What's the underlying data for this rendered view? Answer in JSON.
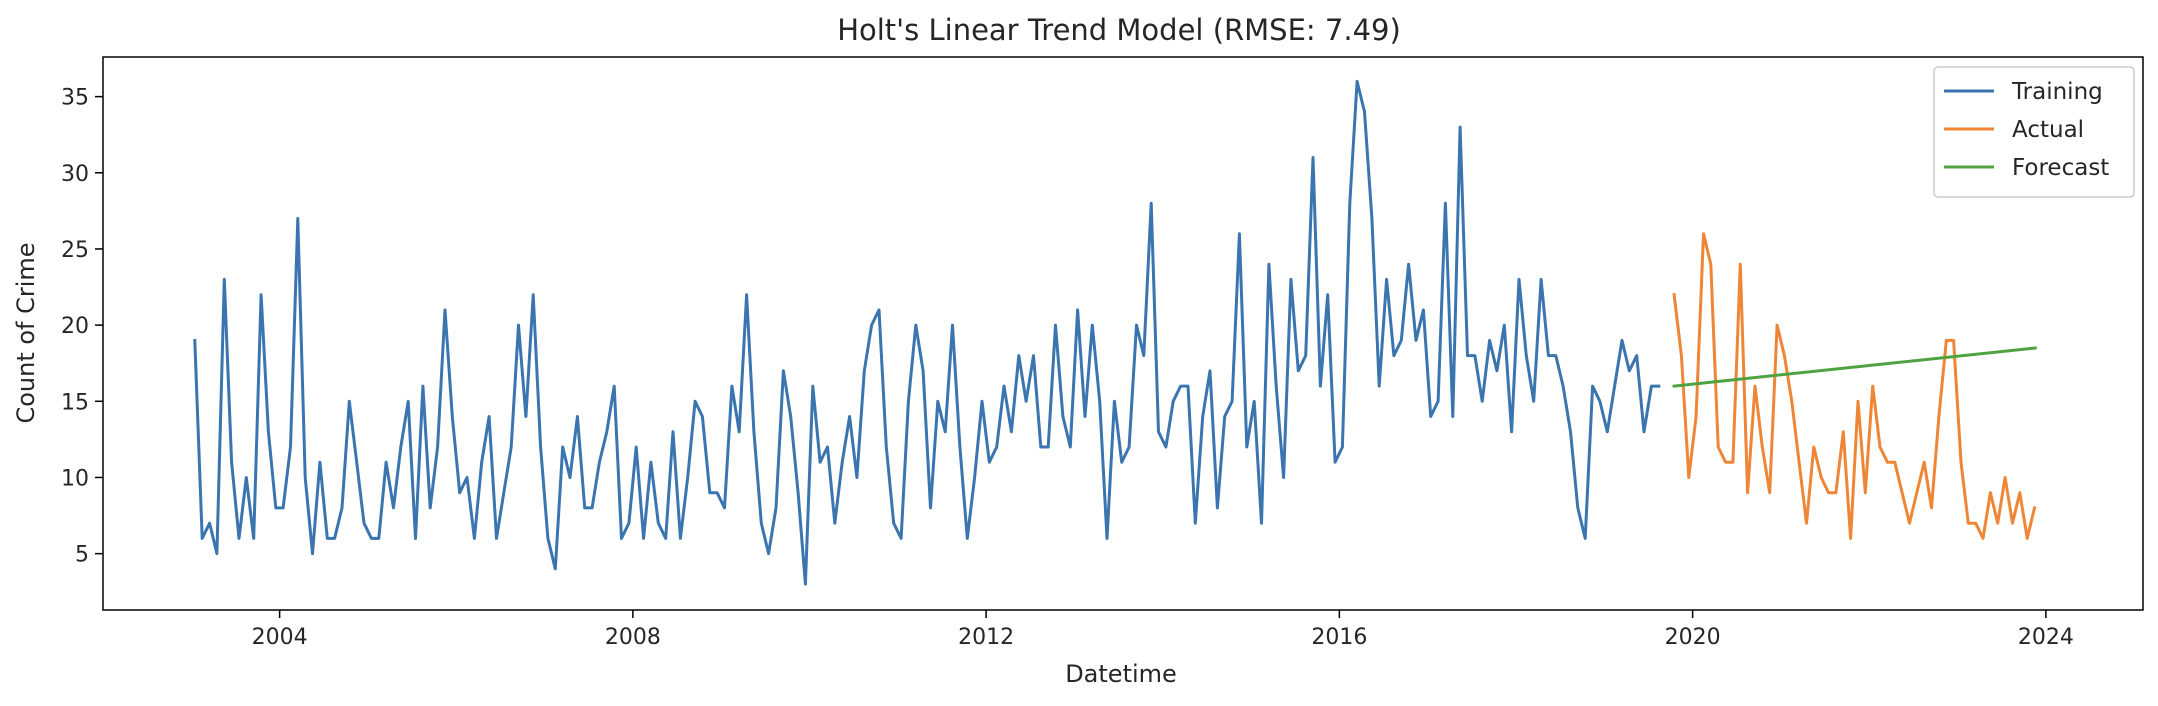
{
  "chart_data": {
    "type": "line",
    "title": "Holt's Linear Trend Model (RMSE: 7.49)",
    "xlabel": "Datetime",
    "ylabel": "Count of Crime",
    "xlim": [
      2002.0,
      2025.1
    ],
    "ylim": [
      1.3,
      37.6
    ],
    "xticks": [
      2004,
      2008,
      2012,
      2016,
      2020,
      2024
    ],
    "yticks": [
      5,
      10,
      15,
      20,
      25,
      30,
      35
    ],
    "grid": false,
    "legend": "top-right",
    "series": [
      {
        "name": "Training",
        "color": "#3a75b0",
        "start_year": 2003.04,
        "step_years": 0.0833,
        "values": [
          19,
          6,
          7,
          5,
          23,
          11,
          6,
          10,
          6,
          22,
          13,
          8,
          8,
          12,
          27,
          10,
          5,
          11,
          6,
          6,
          8,
          15,
          11,
          7,
          6,
          6,
          11,
          8,
          12,
          15,
          6,
          16,
          8,
          12,
          21,
          14,
          9,
          10,
          6,
          11,
          14,
          6,
          9,
          12,
          20,
          14,
          22,
          12,
          6,
          4,
          12,
          10,
          14,
          8,
          8,
          11,
          13,
          16,
          6,
          7,
          12,
          6,
          11,
          7,
          6,
          13,
          6,
          10,
          15,
          14,
          9,
          9,
          8,
          16,
          13,
          22,
          13,
          7,
          5,
          8,
          17,
          14,
          9,
          3,
          16,
          11,
          12,
          7,
          11,
          14,
          10,
          17,
          20,
          21,
          12,
          7,
          6,
          15,
          20,
          17,
          8,
          15,
          13,
          20,
          12,
          6,
          10,
          15,
          11,
          12,
          16,
          13,
          18,
          15,
          18,
          12,
          12,
          20,
          14,
          12,
          21,
          14,
          20,
          15,
          6,
          15,
          11,
          12,
          20,
          18,
          28,
          13,
          12,
          15,
          16,
          16,
          7,
          14,
          17,
          8,
          14,
          15,
          26,
          12,
          15,
          7,
          24,
          16,
          10,
          23,
          17,
          18,
          31,
          16,
          22,
          11,
          12,
          28,
          36,
          34,
          27,
          16,
          23,
          18,
          19,
          24,
          19,
          21,
          14,
          15,
          28,
          14,
          33,
          18,
          18,
          15,
          19,
          17,
          20,
          13,
          23,
          18,
          15,
          23,
          18,
          18,
          16,
          13,
          8,
          6,
          16,
          15,
          13,
          16,
          19,
          17,
          18,
          13,
          16,
          16
        ]
      },
      {
        "name": "Actual",
        "color": "#ef8636",
        "start_year": 2019.79,
        "step_years": 0.0833,
        "values": [
          22,
          18,
          10,
          14,
          26,
          24,
          12,
          11,
          11,
          24,
          9,
          16,
          12,
          9,
          20,
          18,
          15,
          11,
          7,
          12,
          10,
          9,
          9,
          13,
          6,
          15,
          9,
          16,
          12,
          11,
          11,
          9,
          7,
          9,
          11,
          8,
          14,
          19,
          19,
          11,
          7,
          7,
          6,
          9,
          7,
          10,
          7,
          9,
          6,
          8
        ]
      },
      {
        "name": "Forecast",
        "color": "#4ea23f",
        "x": [
          2019.79,
          2023.88
        ],
        "values": [
          16.0,
          18.5
        ]
      }
    ]
  }
}
